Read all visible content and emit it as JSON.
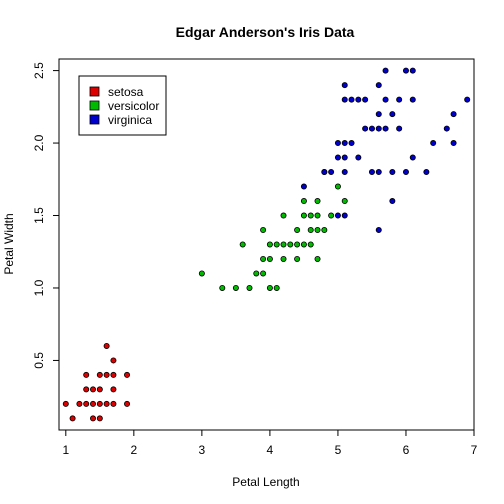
{
  "chart_data": {
    "type": "scatter",
    "title": "Edgar Anderson's Iris Data",
    "xlabel": "Petal Length",
    "ylabel": "Petal Width",
    "xlim": [
      0.9,
      7.0
    ],
    "ylim": [
      0.02,
      2.58
    ],
    "xticks": [
      1,
      2,
      3,
      4,
      5,
      6,
      7
    ],
    "yticks": [
      0.5,
      1.0,
      1.5,
      2.0,
      2.5
    ],
    "xtick_labels": [
      "1",
      "2",
      "3",
      "4",
      "5",
      "6",
      "7"
    ],
    "ytick_labels": [
      "0.5",
      "1.0",
      "1.5",
      "2.0",
      "2.5"
    ],
    "grid": false,
    "legend_position": "top-left",
    "series": [
      {
        "name": "setosa",
        "color": "#dd0000",
        "points": [
          [
            1.0,
            0.2
          ],
          [
            1.1,
            0.1
          ],
          [
            1.2,
            0.2
          ],
          [
            1.3,
            0.2
          ],
          [
            1.3,
            0.3
          ],
          [
            1.3,
            0.4
          ],
          [
            1.4,
            0.1
          ],
          [
            1.4,
            0.2
          ],
          [
            1.4,
            0.3
          ],
          [
            1.5,
            0.1
          ],
          [
            1.5,
            0.2
          ],
          [
            1.5,
            0.3
          ],
          [
            1.5,
            0.4
          ],
          [
            1.6,
            0.2
          ],
          [
            1.6,
            0.4
          ],
          [
            1.6,
            0.6
          ],
          [
            1.7,
            0.2
          ],
          [
            1.7,
            0.3
          ],
          [
            1.7,
            0.4
          ],
          [
            1.7,
            0.5
          ],
          [
            1.9,
            0.2
          ],
          [
            1.9,
            0.4
          ]
        ]
      },
      {
        "name": "versicolor",
        "color": "#00bb00",
        "points": [
          [
            3.0,
            1.1
          ],
          [
            3.3,
            1.0
          ],
          [
            3.5,
            1.0
          ],
          [
            3.6,
            1.3
          ],
          [
            3.7,
            1.0
          ],
          [
            3.8,
            1.1
          ],
          [
            3.9,
            1.1
          ],
          [
            3.9,
            1.2
          ],
          [
            3.9,
            1.4
          ],
          [
            4.0,
            1.0
          ],
          [
            4.0,
            1.2
          ],
          [
            4.0,
            1.3
          ],
          [
            4.1,
            1.0
          ],
          [
            4.1,
            1.3
          ],
          [
            4.2,
            1.2
          ],
          [
            4.2,
            1.3
          ],
          [
            4.2,
            1.5
          ],
          [
            4.3,
            1.3
          ],
          [
            4.4,
            1.2
          ],
          [
            4.4,
            1.3
          ],
          [
            4.4,
            1.4
          ],
          [
            4.5,
            1.3
          ],
          [
            4.5,
            1.5
          ],
          [
            4.5,
            1.6
          ],
          [
            4.6,
            1.3
          ],
          [
            4.6,
            1.4
          ],
          [
            4.6,
            1.5
          ],
          [
            4.7,
            1.2
          ],
          [
            4.7,
            1.4
          ],
          [
            4.7,
            1.5
          ],
          [
            4.7,
            1.6
          ],
          [
            4.8,
            1.4
          ],
          [
            4.8,
            1.8
          ],
          [
            4.9,
            1.5
          ],
          [
            5.0,
            1.7
          ],
          [
            5.1,
            1.6
          ]
        ]
      },
      {
        "name": "virginica",
        "color": "#0000cc",
        "points": [
          [
            4.5,
            1.7
          ],
          [
            4.8,
            1.8
          ],
          [
            4.9,
            1.8
          ],
          [
            5.0,
            1.5
          ],
          [
            5.0,
            1.9
          ],
          [
            5.0,
            2.0
          ],
          [
            5.1,
            1.5
          ],
          [
            5.1,
            1.8
          ],
          [
            5.1,
            1.9
          ],
          [
            5.1,
            2.0
          ],
          [
            5.1,
            2.3
          ],
          [
            5.1,
            2.4
          ],
          [
            5.2,
            2.0
          ],
          [
            5.2,
            2.3
          ],
          [
            5.3,
            1.9
          ],
          [
            5.3,
            2.3
          ],
          [
            5.4,
            2.1
          ],
          [
            5.4,
            2.3
          ],
          [
            5.5,
            1.8
          ],
          [
            5.5,
            2.1
          ],
          [
            5.6,
            1.4
          ],
          [
            5.6,
            1.8
          ],
          [
            5.6,
            2.1
          ],
          [
            5.6,
            2.2
          ],
          [
            5.6,
            2.4
          ],
          [
            5.7,
            2.1
          ],
          [
            5.7,
            2.3
          ],
          [
            5.7,
            2.5
          ],
          [
            5.8,
            1.6
          ],
          [
            5.8,
            1.8
          ],
          [
            5.8,
            2.2
          ],
          [
            5.9,
            2.1
          ],
          [
            5.9,
            2.3
          ],
          [
            6.0,
            1.8
          ],
          [
            6.0,
            2.5
          ],
          [
            6.1,
            1.9
          ],
          [
            6.1,
            2.3
          ],
          [
            6.1,
            2.5
          ],
          [
            6.3,
            1.8
          ],
          [
            6.4,
            2.0
          ],
          [
            6.6,
            2.1
          ],
          [
            6.7,
            2.0
          ],
          [
            6.7,
            2.2
          ],
          [
            6.9,
            2.3
          ]
        ]
      }
    ]
  }
}
